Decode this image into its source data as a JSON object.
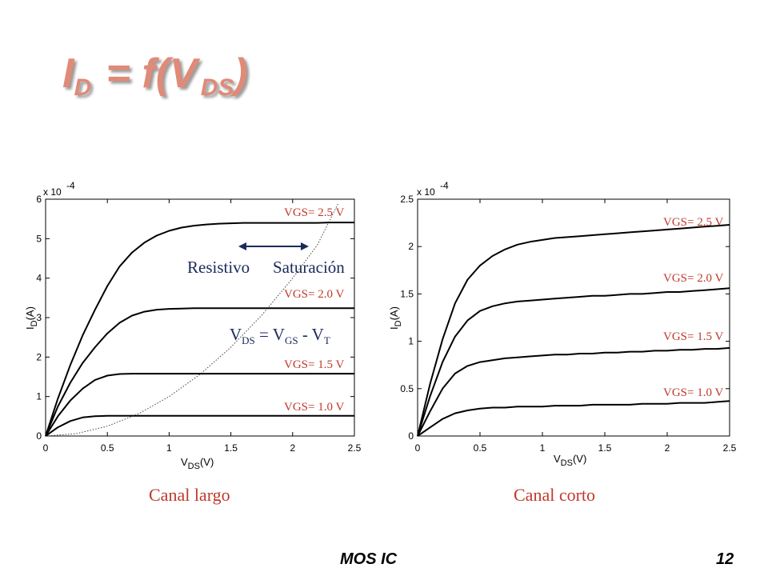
{
  "slide": {
    "title_main": "I",
    "title_sub1": "D",
    "title_mid": " = f(V",
    "title_sub2": "DS",
    "title_end": ")",
    "footer_left": "MOS IC",
    "footer_right": "12"
  },
  "captions": {
    "left": "Canal largo",
    "right": "Canal corto"
  },
  "colors": {
    "title": "#e08a78",
    "curve_labels": "#c0392b",
    "annotation": "#1a2a5a"
  },
  "chart_data": [
    {
      "type": "line",
      "exponent_label": "x 10",
      "exponent_power": "-4",
      "xlabel_main": "V",
      "xlabel_sub": "DS",
      "xlabel_unit": "(V)",
      "ylabel_main": "I",
      "ylabel_sub": "D",
      "ylabel_unit": "(A)",
      "xlim": [
        0,
        2.5
      ],
      "ylim": [
        0,
        6
      ],
      "xticks": [
        "0",
        "0.5",
        "1",
        "1.5",
        "2",
        "2.5"
      ],
      "yticks": [
        "0",
        "1",
        "2",
        "3",
        "4",
        "5",
        "6"
      ],
      "x": [
        0,
        0.1,
        0.2,
        0.3,
        0.4,
        0.5,
        0.6,
        0.7,
        0.8,
        0.9,
        1.0,
        1.1,
        1.2,
        1.3,
        1.4,
        1.5,
        1.6,
        1.7,
        1.8,
        1.9,
        2.0,
        2.1,
        2.2,
        2.3,
        2.4,
        2.5
      ],
      "series": [
        {
          "name": "VGS= 2.5 V",
          "values": [
            0,
            0.95,
            1.8,
            2.55,
            3.2,
            3.8,
            4.3,
            4.65,
            4.9,
            5.08,
            5.2,
            5.28,
            5.33,
            5.36,
            5.38,
            5.39,
            5.4,
            5.4,
            5.4,
            5.4,
            5.4,
            5.4,
            5.4,
            5.41,
            5.41,
            5.41
          ]
        },
        {
          "name": "VGS= 2.0 V",
          "values": [
            0,
            0.75,
            1.35,
            1.85,
            2.25,
            2.6,
            2.87,
            3.05,
            3.15,
            3.2,
            3.22,
            3.23,
            3.24,
            3.24,
            3.24,
            3.24,
            3.24,
            3.24,
            3.24,
            3.24,
            3.24,
            3.24,
            3.24,
            3.24,
            3.24,
            3.24
          ]
        },
        {
          "name": "VGS= 1.5 V",
          "values": [
            0,
            0.5,
            0.9,
            1.2,
            1.42,
            1.53,
            1.57,
            1.58,
            1.58,
            1.58,
            1.58,
            1.58,
            1.58,
            1.58,
            1.58,
            1.58,
            1.58,
            1.58,
            1.58,
            1.58,
            1.58,
            1.58,
            1.58,
            1.58,
            1.58,
            1.58
          ]
        },
        {
          "name": "VGS= 1.0 V",
          "values": [
            0,
            0.22,
            0.38,
            0.47,
            0.5,
            0.51,
            0.51,
            0.51,
            0.51,
            0.51,
            0.51,
            0.51,
            0.51,
            0.51,
            0.51,
            0.51,
            0.51,
            0.51,
            0.51,
            0.51,
            0.51,
            0.51,
            0.51,
            0.51,
            0.51,
            0.51
          ]
        }
      ],
      "boundary_curve": {
        "style": "dotted",
        "x": [
          0,
          0.25,
          0.5,
          0.75,
          1.0,
          1.25,
          1.5,
          1.75,
          2.0,
          2.2,
          2.37
        ],
        "values": [
          0,
          0.06,
          0.25,
          0.56,
          1.0,
          1.56,
          2.25,
          3.06,
          4.0,
          4.84,
          5.9
        ]
      },
      "annotations": {
        "left_region": "Resistivo",
        "right_region": "Saturación",
        "equation_main1": "V",
        "equation_sub1": "DS",
        "equation_main2": " = V",
        "equation_sub2": "GS",
        "equation_main3": " - V",
        "equation_sub3": "T"
      }
    },
    {
      "type": "line",
      "exponent_label": "x 10",
      "exponent_power": "-4",
      "xlabel_main": "V",
      "xlabel_sub": "DS",
      "xlabel_unit": "(V)",
      "ylabel_main": "I",
      "ylabel_sub": "D",
      "ylabel_unit": "(A)",
      "xlim": [
        0,
        2.5
      ],
      "ylim": [
        0,
        2.5
      ],
      "xticks": [
        "0",
        "0.5",
        "1",
        "1.5",
        "2",
        "2.5"
      ],
      "yticks": [
        "0",
        "0.5",
        "1",
        "1.5",
        "2",
        "2.5"
      ],
      "x": [
        0,
        0.1,
        0.2,
        0.3,
        0.4,
        0.5,
        0.6,
        0.7,
        0.8,
        0.9,
        1.0,
        1.1,
        1.2,
        1.3,
        1.4,
        1.5,
        1.6,
        1.7,
        1.8,
        1.9,
        2.0,
        2.1,
        2.2,
        2.3,
        2.4,
        2.5
      ],
      "series": [
        {
          "name": "VGS= 2.5 V",
          "values": [
            0,
            0.55,
            1.02,
            1.4,
            1.65,
            1.8,
            1.9,
            1.97,
            2.02,
            2.05,
            2.07,
            2.09,
            2.1,
            2.11,
            2.12,
            2.13,
            2.14,
            2.15,
            2.16,
            2.17,
            2.18,
            2.19,
            2.2,
            2.21,
            2.22,
            2.23
          ]
        },
        {
          "name": "VGS= 2.0 V",
          "values": [
            0,
            0.42,
            0.78,
            1.05,
            1.22,
            1.32,
            1.37,
            1.4,
            1.42,
            1.43,
            1.44,
            1.45,
            1.46,
            1.47,
            1.48,
            1.48,
            1.49,
            1.5,
            1.5,
            1.51,
            1.52,
            1.52,
            1.53,
            1.54,
            1.55,
            1.56
          ]
        },
        {
          "name": "VGS= 1.5 V",
          "values": [
            0,
            0.26,
            0.5,
            0.66,
            0.74,
            0.78,
            0.8,
            0.82,
            0.83,
            0.84,
            0.85,
            0.86,
            0.86,
            0.87,
            0.87,
            0.88,
            0.88,
            0.89,
            0.89,
            0.9,
            0.9,
            0.91,
            0.91,
            0.92,
            0.92,
            0.93
          ]
        },
        {
          "name": "VGS= 1.0 V",
          "values": [
            0,
            0.09,
            0.18,
            0.24,
            0.27,
            0.29,
            0.3,
            0.3,
            0.31,
            0.31,
            0.31,
            0.32,
            0.32,
            0.32,
            0.33,
            0.33,
            0.33,
            0.33,
            0.34,
            0.34,
            0.34,
            0.35,
            0.35,
            0.35,
            0.36,
            0.37
          ]
        }
      ]
    }
  ]
}
